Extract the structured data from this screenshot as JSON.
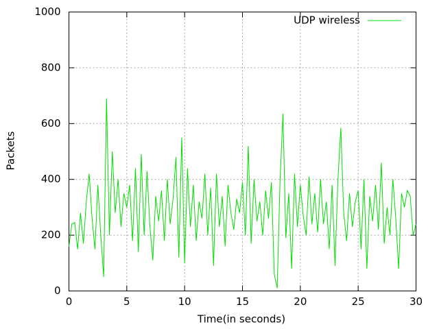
{
  "chart_data": {
    "type": "line",
    "xlabel": "Time(in seconds)",
    "ylabel": "Packets",
    "x": [
      0,
      0.25,
      0.5,
      0.75,
      1,
      1.25,
      1.5,
      1.75,
      2,
      2.25,
      2.5,
      2.75,
      3,
      3.25,
      3.5,
      3.75,
      4,
      4.25,
      4.5,
      4.75,
      5,
      5.25,
      5.5,
      5.75,
      6,
      6.25,
      6.5,
      6.75,
      7,
      7.25,
      7.5,
      7.75,
      8,
      8.25,
      8.5,
      8.75,
      9,
      9.25,
      9.5,
      9.75,
      10,
      10.25,
      10.5,
      10.75,
      11,
      11.25,
      11.5,
      11.75,
      12,
      12.25,
      12.5,
      12.75,
      13,
      13.25,
      13.5,
      13.75,
      14,
      14.25,
      14.5,
      14.75,
      15,
      15.25,
      15.5,
      15.75,
      16,
      16.25,
      16.5,
      16.75,
      17,
      17.25,
      17.5,
      17.75,
      18,
      18.25,
      18.5,
      18.75,
      19,
      19.25,
      19.5,
      19.75,
      20,
      20.25,
      20.5,
      20.75,
      21,
      21.25,
      21.5,
      21.75,
      22,
      22.25,
      22.5,
      22.75,
      23,
      23.25,
      23.5,
      23.75,
      24,
      24.25,
      24.5,
      24.75,
      25,
      25.25,
      25.5,
      25.75,
      26,
      26.25,
      26.5,
      26.75,
      27,
      27.25,
      27.5,
      27.75,
      28,
      28.25,
      28.5,
      28.75,
      29,
      29.25,
      29.5,
      29.75,
      30
    ],
    "series": [
      {
        "name": "UDP wireless",
        "color": "#00dd00",
        "values": [
          160,
          240,
          245,
          150,
          280,
          170,
          320,
          420,
          260,
          150,
          380,
          200,
          50,
          690,
          200,
          500,
          280,
          400,
          230,
          350,
          300,
          380,
          180,
          440,
          140,
          490,
          200,
          430,
          230,
          110,
          340,
          250,
          360,
          180,
          400,
          240,
          330,
          480,
          120,
          550,
          100,
          440,
          230,
          380,
          180,
          320,
          260,
          420,
          200,
          370,
          90,
          420,
          230,
          340,
          160,
          380,
          280,
          220,
          330,
          280,
          390,
          200,
          520,
          170,
          400,
          250,
          320,
          200,
          360,
          260,
          390,
          60,
          10,
          400,
          635,
          190,
          350,
          80,
          420,
          230,
          380,
          270,
          200,
          410,
          240,
          350,
          210,
          400,
          240,
          320,
          150,
          380,
          90,
          400,
          585,
          280,
          180,
          350,
          230,
          320,
          360,
          150,
          400,
          80,
          340,
          250,
          380,
          220,
          460,
          170,
          300,
          200,
          400,
          260,
          80,
          350,
          300,
          360,
          340,
          200,
          240
        ]
      }
    ],
    "xlim": [
      0,
      30
    ],
    "ylim": [
      0,
      1000
    ],
    "xticks": [
      0,
      5,
      10,
      15,
      20,
      25,
      30
    ],
    "yticks": [
      0,
      200,
      400,
      600,
      800,
      1000
    ],
    "grid": true,
    "legend": "top-right"
  }
}
